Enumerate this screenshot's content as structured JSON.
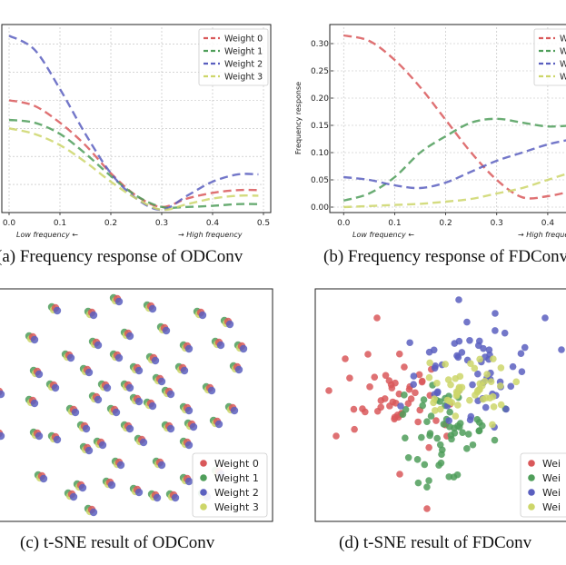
{
  "chart_data": [
    {
      "id": "a",
      "type": "line",
      "caption": "(a) Frequency response of ODConv",
      "xlim": [
        0,
        0.5
      ],
      "ylim": [
        0.0,
        0.33
      ],
      "xticks": [
        "0.0",
        "0.1",
        "0.2",
        "0.3",
        "0.4",
        "0.5"
      ],
      "yticks": [],
      "xlabel_left": "Low frequency ←",
      "xlabel_right": "→ High frequency",
      "ylabel": "",
      "grid": true,
      "legend": "top-right",
      "series": [
        {
          "name": "Weight 0",
          "color": "#d9585a",
          "x": [
            0,
            0.05,
            0.1,
            0.15,
            0.2,
            0.25,
            0.3,
            0.35,
            0.4,
            0.45,
            0.49
          ],
          "y": [
            0.2,
            0.19,
            0.16,
            0.12,
            0.07,
            0.03,
            0.01,
            0.025,
            0.035,
            0.04,
            0.04
          ]
        },
        {
          "name": "Weight 1",
          "color": "#4f9e5a",
          "x": [
            0,
            0.05,
            0.1,
            0.15,
            0.2,
            0.25,
            0.3,
            0.35,
            0.4,
            0.45,
            0.49
          ],
          "y": [
            0.165,
            0.16,
            0.14,
            0.105,
            0.065,
            0.03,
            0.01,
            0.01,
            0.012,
            0.015,
            0.015
          ]
        },
        {
          "name": "Weight 2",
          "color": "#5a5fbf",
          "x": [
            0,
            0.05,
            0.1,
            0.15,
            0.2,
            0.25,
            0.3,
            0.35,
            0.4,
            0.45,
            0.49
          ],
          "y": [
            0.315,
            0.29,
            0.22,
            0.14,
            0.07,
            0.025,
            0.005,
            0.03,
            0.055,
            0.068,
            0.068
          ]
        },
        {
          "name": "Weight 3",
          "color": "#cdd66a",
          "x": [
            0,
            0.05,
            0.1,
            0.15,
            0.2,
            0.25,
            0.3,
            0.35,
            0.4,
            0.45,
            0.49
          ],
          "y": [
            0.15,
            0.14,
            0.12,
            0.09,
            0.055,
            0.025,
            0.005,
            0.015,
            0.025,
            0.03,
            0.03
          ]
        }
      ]
    },
    {
      "id": "b",
      "type": "line",
      "caption": "(b) Frequency response of FDConv",
      "xlim": [
        -0.02,
        0.45
      ],
      "ylim": [
        -0.01,
        0.33
      ],
      "xticks": [
        "0.0",
        "0.1",
        "0.2",
        "0.3",
        "0.4"
      ],
      "yticks": [
        "0.00",
        "0.05",
        "0.10",
        "0.15",
        "0.20",
        "0.25",
        "0.30"
      ],
      "xlabel_left": "Low frequency ←",
      "xlabel_right": "→ High freque",
      "ylabel": "Frequency response",
      "grid": true,
      "legend": "top-right",
      "series": [
        {
          "name": "W",
          "color": "#d9585a",
          "x": [
            0,
            0.05,
            0.1,
            0.15,
            0.2,
            0.25,
            0.3,
            0.35,
            0.4,
            0.45
          ],
          "y": [
            0.315,
            0.305,
            0.27,
            0.22,
            0.16,
            0.1,
            0.05,
            0.018,
            0.02,
            0.03
          ]
        },
        {
          "name": "W",
          "color": "#4f9e5a",
          "x": [
            0,
            0.05,
            0.1,
            0.15,
            0.2,
            0.25,
            0.3,
            0.35,
            0.4,
            0.45
          ],
          "y": [
            0.012,
            0.025,
            0.055,
            0.1,
            0.13,
            0.155,
            0.162,
            0.155,
            0.148,
            0.15
          ]
        },
        {
          "name": "W",
          "color": "#5a5fbf",
          "x": [
            0,
            0.05,
            0.1,
            0.15,
            0.2,
            0.25,
            0.3,
            0.35,
            0.4,
            0.45
          ],
          "y": [
            0.055,
            0.05,
            0.04,
            0.035,
            0.045,
            0.065,
            0.085,
            0.1,
            0.115,
            0.125
          ]
        },
        {
          "name": "W",
          "color": "#cdd66a",
          "x": [
            0,
            0.05,
            0.1,
            0.15,
            0.2,
            0.25,
            0.3,
            0.35,
            0.4,
            0.45
          ],
          "y": [
            0.0,
            0.002,
            0.004,
            0.006,
            0.01,
            0.015,
            0.025,
            0.035,
            0.05,
            0.065
          ]
        }
      ]
    },
    {
      "id": "c",
      "type": "scatter",
      "caption": "(c) t-SNE result of ODConv",
      "legend": "bottom-right",
      "legend_entries": [
        {
          "name": "Weight 0",
          "color": "#d9585a"
        },
        {
          "name": "Weight 1",
          "color": "#4f9e5a"
        },
        {
          "name": "Weight 2",
          "color": "#5a5fbf"
        },
        {
          "name": "Weight 3",
          "color": "#cdd66a"
        }
      ]
    },
    {
      "id": "d",
      "type": "scatter",
      "caption": "(d) t-SNE result of FDConv",
      "legend": "bottom-right",
      "legend_entries": [
        {
          "name": "Wei",
          "color": "#d9585a"
        },
        {
          "name": "Wei",
          "color": "#4f9e5a"
        },
        {
          "name": "Wei",
          "color": "#5a5fbf"
        },
        {
          "name": "Wei",
          "color": "#cdd66a"
        }
      ]
    }
  ]
}
